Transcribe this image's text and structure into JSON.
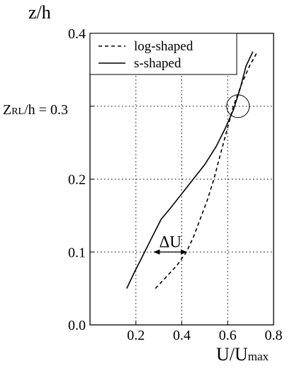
{
  "chart_data": {
    "type": "line",
    "x_label": "U/U",
    "x_label_sub": "max",
    "y_label": "z/h",
    "x_ticks": [
      0.2,
      0.4,
      0.6,
      0.8
    ],
    "x_tick_labels": [
      "0.2",
      "0.4",
      "0.6",
      "0.8"
    ],
    "y_ticks": [
      0.0,
      0.1,
      0.2,
      0.3,
      0.4
    ],
    "y_tick_labels": [
      "0.0",
      "0.1",
      "0.2",
      "0.3",
      "0.4"
    ],
    "xlim": [
      0.0,
      0.8
    ],
    "ylim": [
      0.0,
      0.4
    ],
    "grid": "dotted",
    "legend_position": "top-left",
    "series": [
      {
        "name": "log-shaped",
        "style": "dashed",
        "color": "#000000",
        "points": [
          [
            0.285,
            0.05
          ],
          [
            0.33,
            0.065
          ],
          [
            0.38,
            0.082
          ],
          [
            0.42,
            0.1
          ],
          [
            0.45,
            0.12
          ],
          [
            0.48,
            0.145
          ],
          [
            0.51,
            0.17
          ],
          [
            0.54,
            0.2
          ],
          [
            0.565,
            0.23
          ],
          [
            0.595,
            0.265
          ],
          [
            0.625,
            0.3
          ],
          [
            0.66,
            0.33
          ],
          [
            0.695,
            0.355
          ],
          [
            0.73,
            0.375
          ]
        ]
      },
      {
        "name": "s-shaped",
        "style": "solid",
        "color": "#000000",
        "points": [
          [
            0.16,
            0.05
          ],
          [
            0.19,
            0.07
          ],
          [
            0.23,
            0.095
          ],
          [
            0.27,
            0.12
          ],
          [
            0.31,
            0.145
          ],
          [
            0.35,
            0.16
          ],
          [
            0.4,
            0.18
          ],
          [
            0.45,
            0.2
          ],
          [
            0.5,
            0.22
          ],
          [
            0.55,
            0.245
          ],
          [
            0.59,
            0.27
          ],
          [
            0.625,
            0.295
          ],
          [
            0.655,
            0.325
          ],
          [
            0.68,
            0.355
          ],
          [
            0.71,
            0.375
          ]
        ]
      }
    ],
    "annotations": {
      "delta_label": "ΔU",
      "delta_y": 0.1,
      "delta_x_from": 0.27,
      "delta_x_to": 0.43,
      "zrl_label_main": "Z",
      "zrl_label_sub": "RL",
      "zrl_label_rest": "/h = 0.3",
      "circle_x": 0.645,
      "circle_y": 0.3
    }
  }
}
